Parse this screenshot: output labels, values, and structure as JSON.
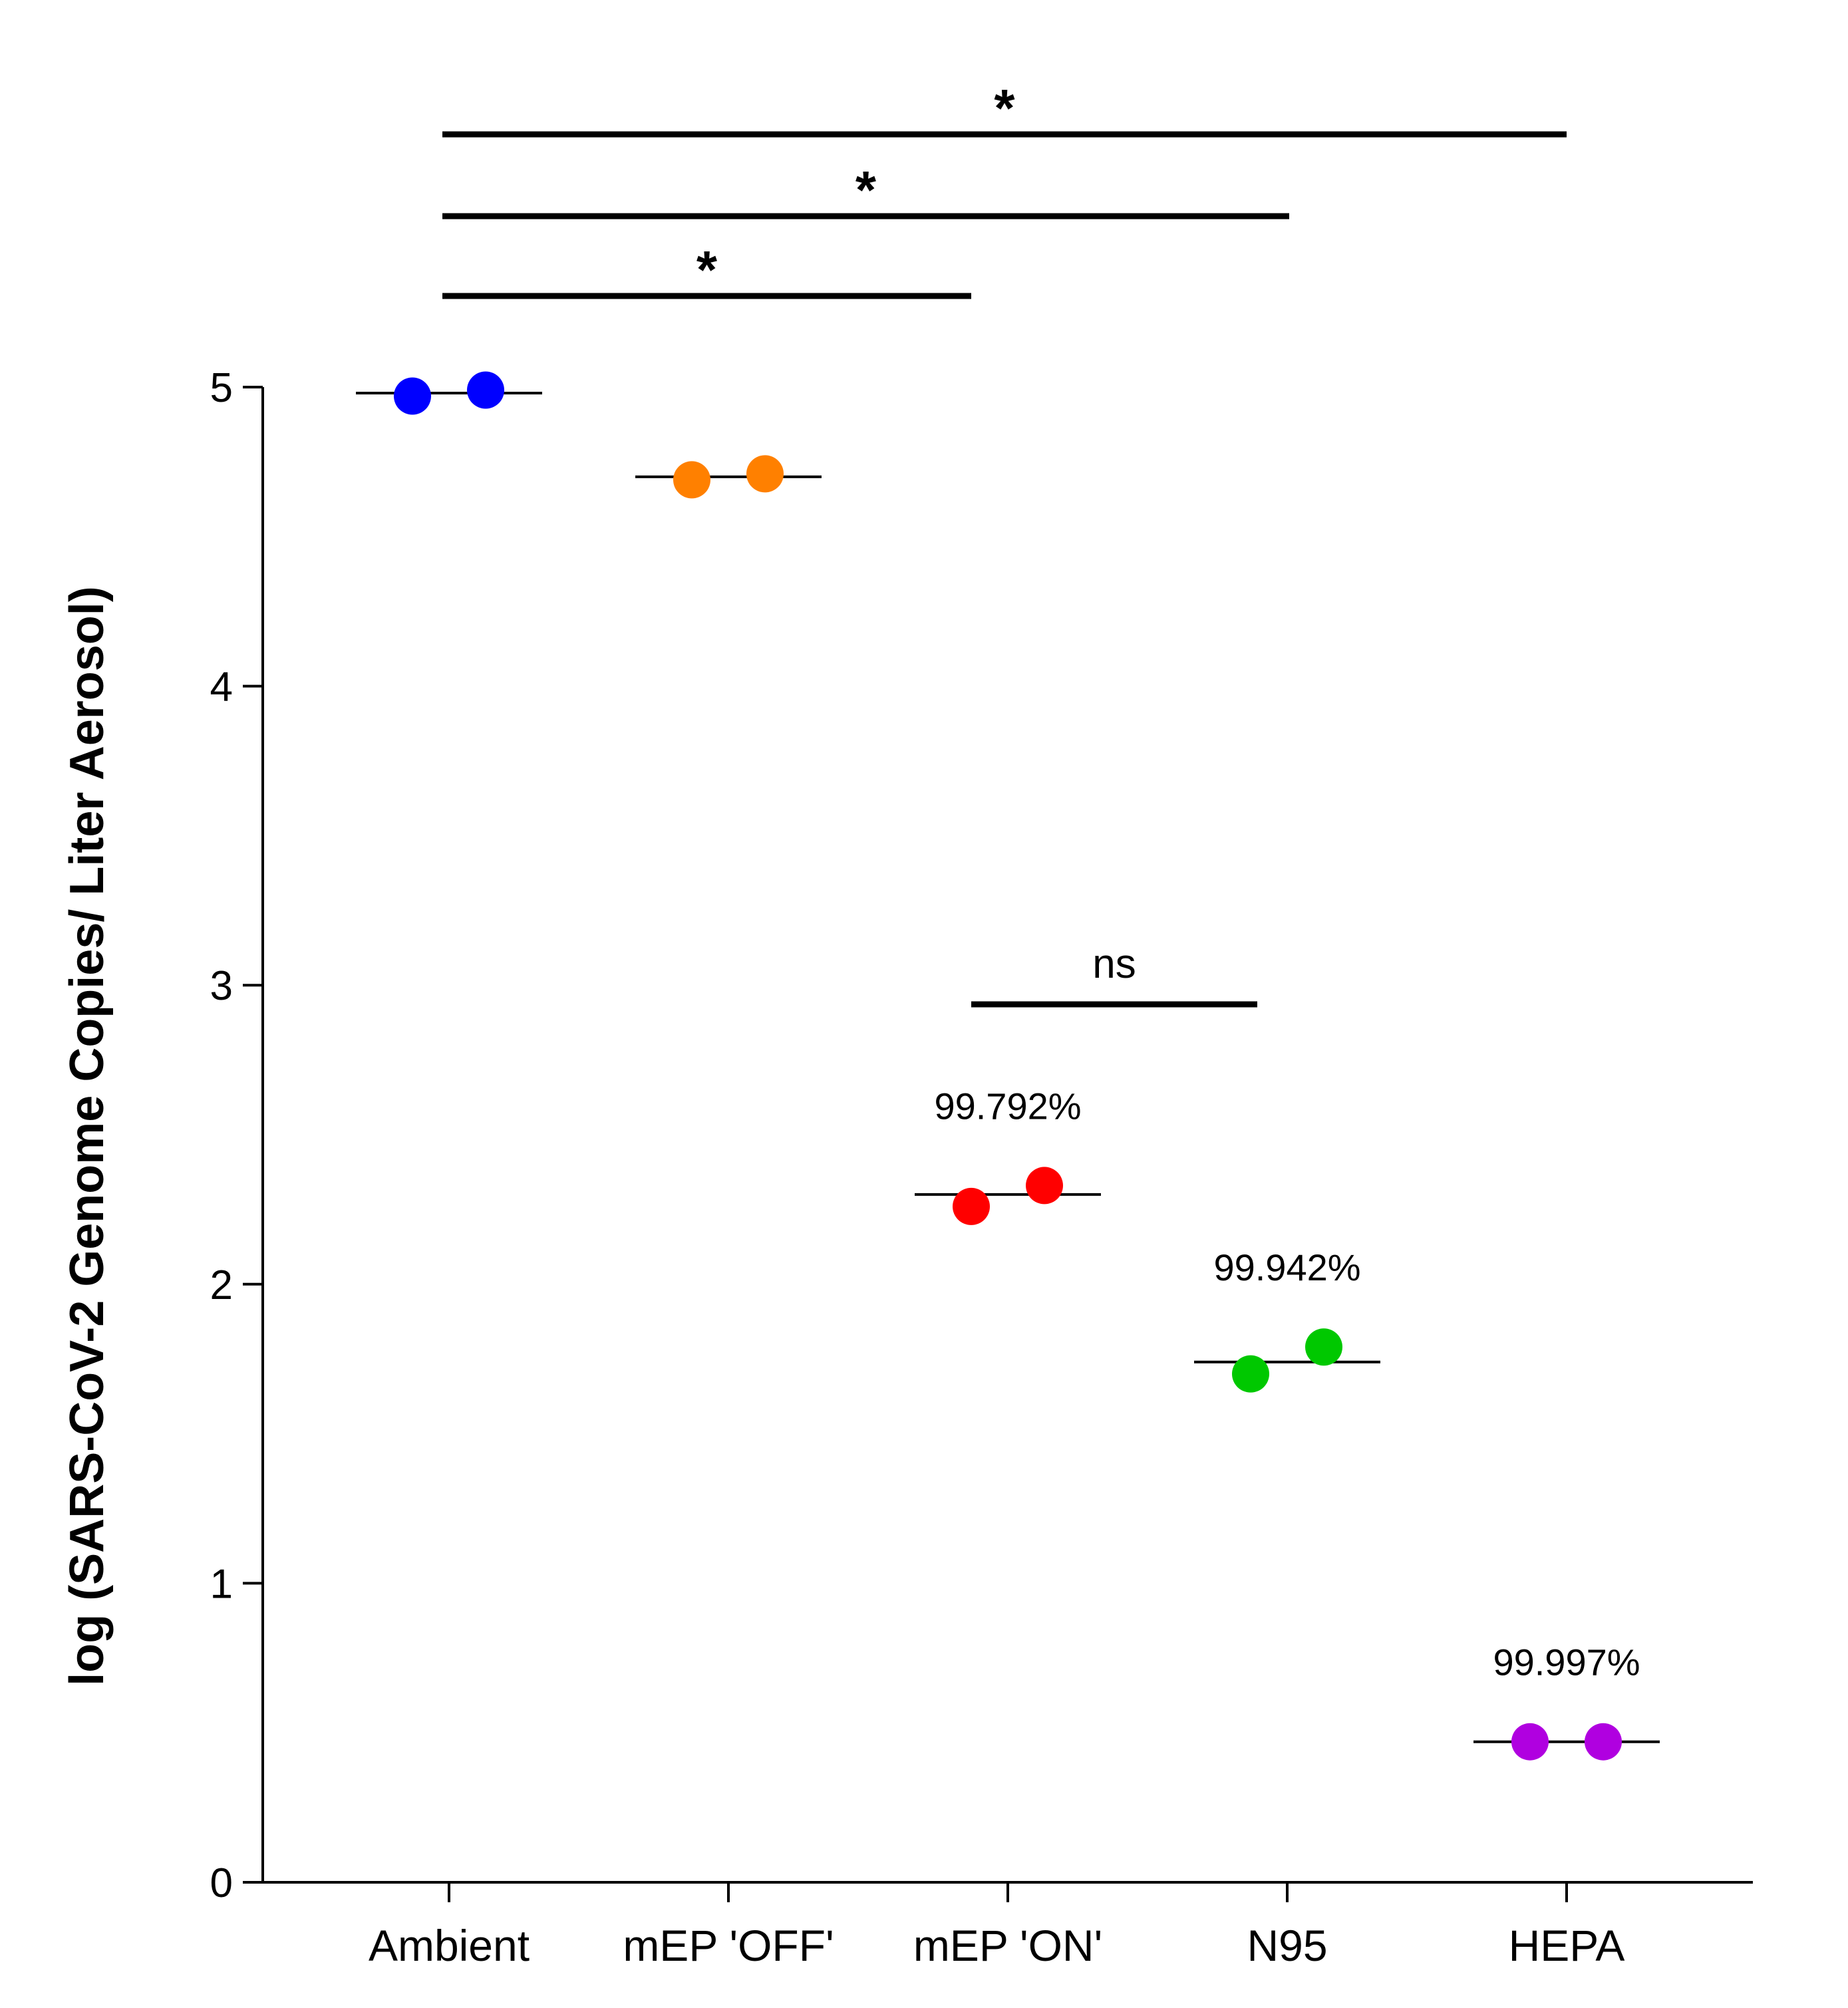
{
  "chart_data": {
    "type": "scatter",
    "title": "",
    "xlabel": "",
    "ylabel": "log (SARS-CoV-2 Genome Copies/ Liter Aerosol)",
    "ylim": [
      0,
      5
    ],
    "yticks": [
      0,
      1,
      2,
      3,
      4,
      5
    ],
    "grid": false,
    "categories": [
      "Ambient",
      "mEP 'OFF'",
      "mEP 'ON'",
      "N95",
      "HEPA"
    ],
    "series": [
      {
        "name": "Ambient",
        "color": "#0000ff",
        "values": [
          4.97,
          4.99
        ],
        "mean": 4.98,
        "annotation": ""
      },
      {
        "name": "mEP 'OFF'",
        "color": "#ff8000",
        "values": [
          4.69,
          4.71
        ],
        "mean": 4.7,
        "annotation": ""
      },
      {
        "name": "mEP 'ON'",
        "color": "#ff0000",
        "values": [
          2.26,
          2.33
        ],
        "mean": 2.3,
        "annotation": "99.792%"
      },
      {
        "name": "N95",
        "color": "#00c800",
        "values": [
          1.7,
          1.79
        ],
        "mean": 1.74,
        "annotation": "99.942%"
      },
      {
        "name": "HEPA",
        "color": "#b000e0",
        "values": [
          0.47,
          0.47
        ],
        "mean": 0.47,
        "annotation": "99.997%"
      }
    ],
    "significance": [
      {
        "from": "Ambient",
        "to": "mEP 'ON'",
        "label": "*"
      },
      {
        "from": "Ambient",
        "to": "N95",
        "label": "*"
      },
      {
        "from": "Ambient",
        "to": "HEPA",
        "label": "*"
      },
      {
        "from": "mEP 'ON'",
        "to": "N95",
        "label": "ns"
      }
    ]
  }
}
